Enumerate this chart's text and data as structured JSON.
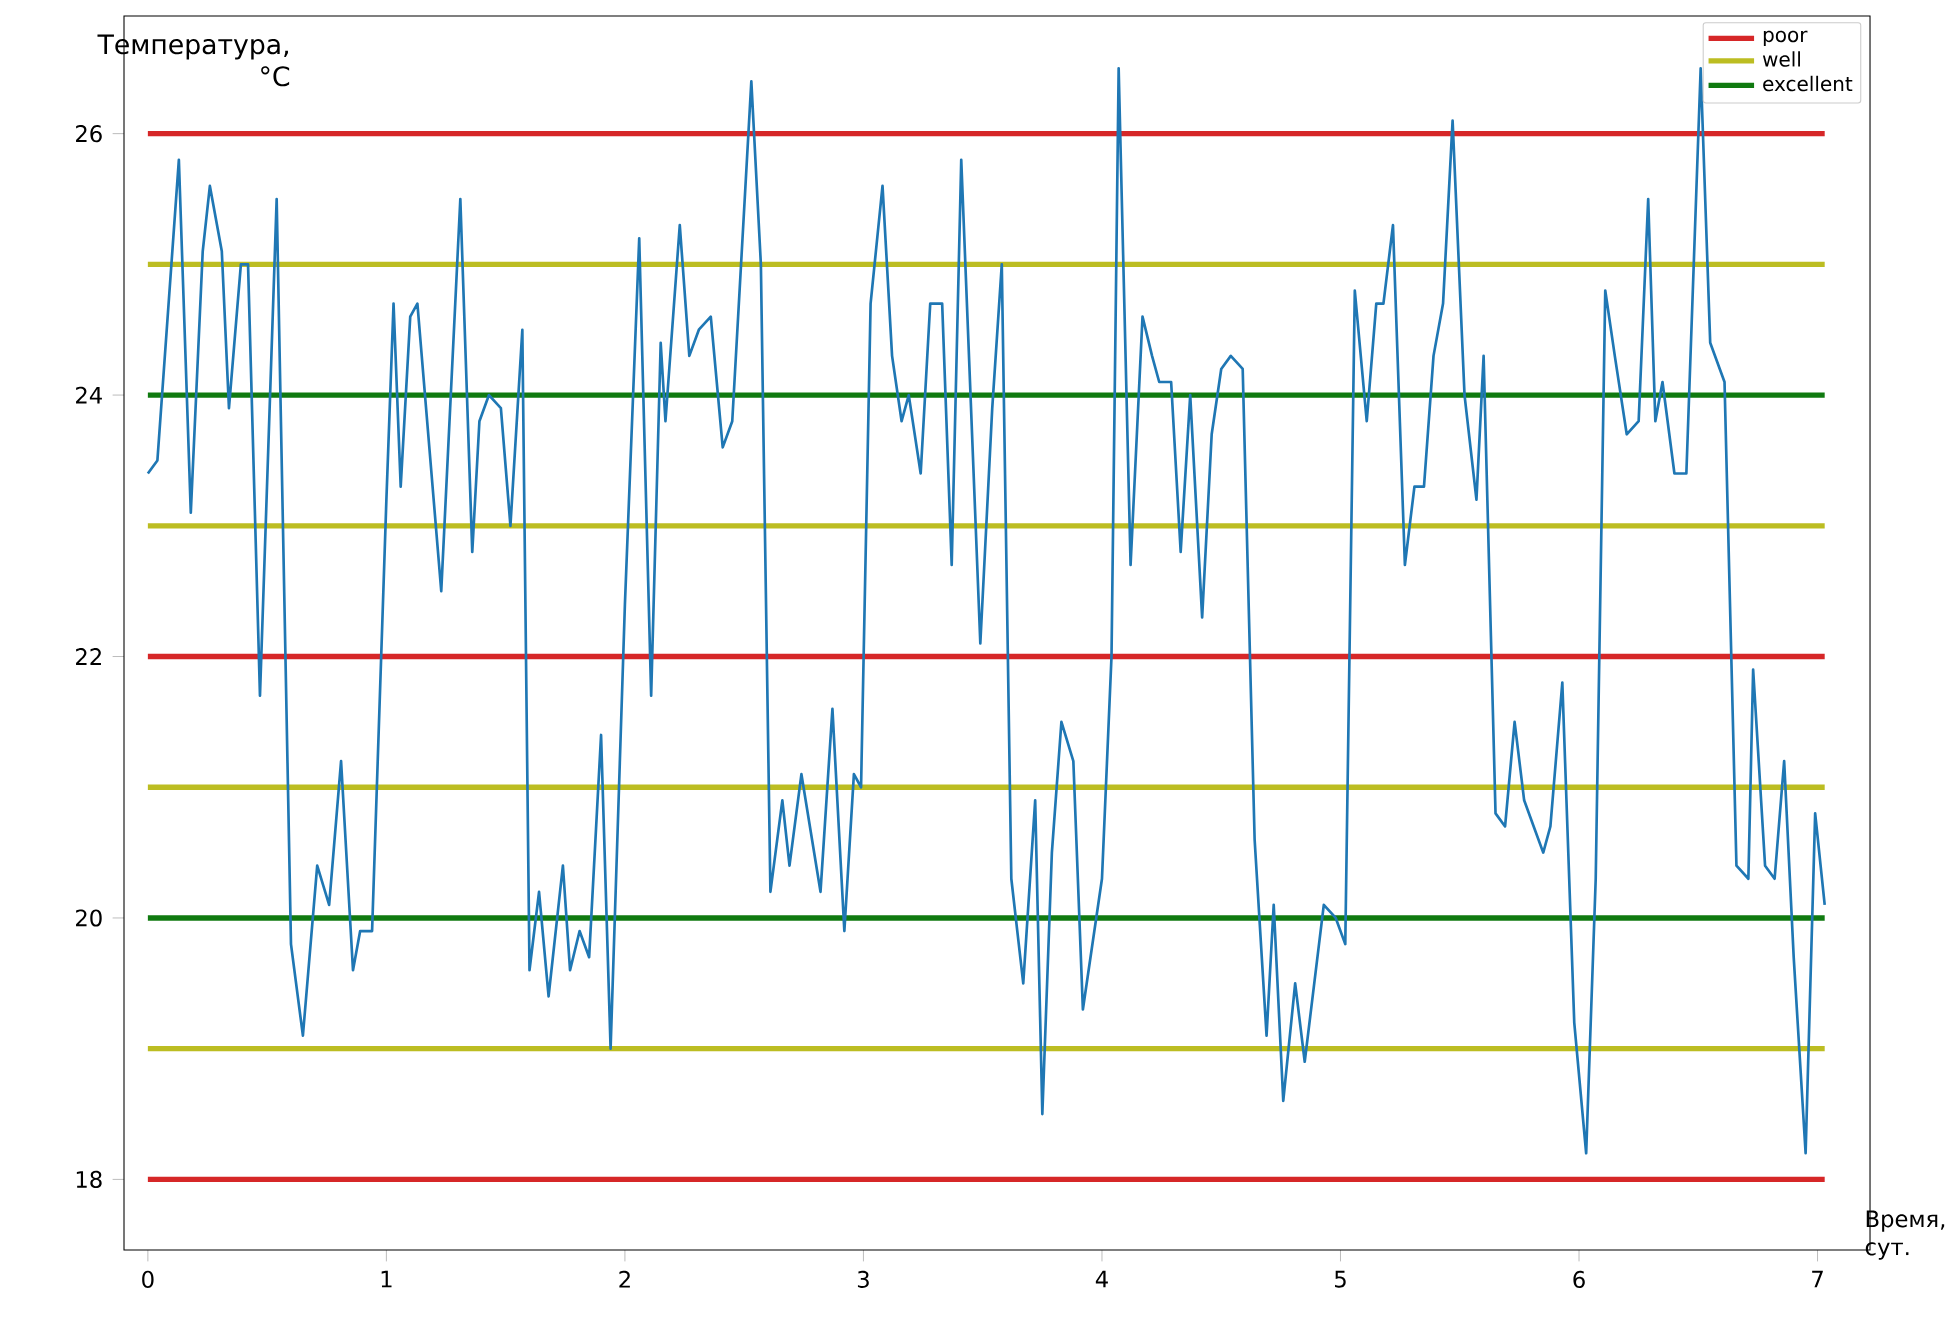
{
  "chart_data": {
    "type": "line",
    "xlabel": "Время, сут.",
    "ylabel": "Температура, °C",
    "xlim": [
      -0.1,
      7.22
    ],
    "ylim": [
      17.46,
      26.9
    ],
    "xticks": [
      0,
      1,
      2,
      3,
      4,
      5,
      6,
      7
    ],
    "yticks": [
      18,
      20,
      22,
      24,
      26
    ],
    "grid": false,
    "legend": "top right",
    "marker": "none",
    "line_style": "solid",
    "series": [
      {
        "color": "#1f77b4",
        "x": [
          0,
          0.04,
          0.13,
          0.18,
          0.23,
          0.26,
          0.31,
          0.34,
          0.39,
          0.42,
          0.47,
          0.54,
          0.6,
          0.65,
          0.71,
          0.76,
          0.81,
          0.86,
          0.89,
          0.94,
          1.0,
          1.03,
          1.06,
          1.1,
          1.13,
          1.23,
          1.31,
          1.36,
          1.39,
          1.43,
          1.48,
          1.52,
          1.57,
          1.6,
          1.64,
          1.68,
          1.74,
          1.77,
          1.81,
          1.85,
          1.9,
          1.94,
          2.0,
          2.06,
          2.11,
          2.15,
          2.17,
          2.23,
          2.27,
          2.31,
          2.36,
          2.41,
          2.45,
          2.53,
          2.57,
          2.61,
          2.66,
          2.69,
          2.74,
          2.82,
          2.87,
          2.92,
          2.96,
          2.99,
          3.03,
          3.08,
          3.12,
          3.16,
          3.19,
          3.24,
          3.28,
          3.33,
          3.37,
          3.41,
          3.49,
          3.54,
          3.58,
          3.62,
          3.67,
          3.72,
          3.75,
          3.79,
          3.83,
          3.88,
          3.92,
          3.96,
          4.0,
          4.04,
          4.07,
          4.12,
          4.17,
          4.21,
          4.24,
          4.29,
          4.33,
          4.37,
          4.42,
          4.46,
          4.5,
          4.54,
          4.59,
          4.64,
          4.69,
          4.72,
          4.76,
          4.81,
          4.85,
          4.93,
          4.98,
          5.02,
          5.06,
          5.11,
          5.15,
          5.18,
          5.22,
          5.27,
          5.31,
          5.35,
          5.39,
          5.43,
          5.47,
          5.52,
          5.57,
          5.6,
          5.65,
          5.69,
          5.73,
          5.77,
          5.81,
          5.85,
          5.88,
          5.93,
          5.98,
          6.03,
          6.07,
          6.11,
          6.15,
          6.2,
          6.25,
          6.29,
          6.32,
          6.35,
          6.4,
          6.45,
          6.51,
          6.55,
          6.61,
          6.66,
          6.71,
          6.73,
          6.78,
          6.82,
          6.86,
          6.9,
          6.95,
          6.99,
          7.03
        ],
        "values": [
          23.4,
          23.5,
          25.8,
          23.1,
          25.1,
          25.6,
          25.1,
          23.9,
          25.0,
          25.0,
          21.7,
          25.5,
          19.8,
          19.1,
          20.4,
          20.1,
          21.2,
          19.6,
          19.9,
          19.9,
          23.2,
          24.7,
          23.3,
          24.6,
          24.7,
          22.5,
          25.5,
          22.8,
          23.8,
          24.0,
          23.9,
          23.0,
          24.5,
          19.6,
          20.2,
          19.4,
          20.4,
          19.6,
          19.9,
          19.7,
          21.4,
          19.0,
          22.4,
          25.2,
          21.7,
          24.4,
          23.8,
          25.3,
          24.3,
          24.5,
          24.6,
          23.6,
          23.8,
          26.4,
          25.0,
          20.2,
          20.9,
          20.4,
          21.1,
          20.2,
          21.6,
          19.9,
          21.1,
          21.0,
          24.7,
          25.6,
          24.3,
          23.8,
          24.0,
          23.4,
          24.7,
          24.7,
          22.7,
          25.8,
          22.1,
          23.9,
          25.0,
          20.3,
          19.5,
          20.9,
          18.5,
          20.5,
          21.5,
          21.2,
          19.3,
          19.8,
          20.3,
          22.0,
          26.5,
          22.7,
          24.6,
          24.3,
          24.1,
          24.1,
          22.8,
          24.0,
          22.3,
          23.7,
          24.2,
          24.3,
          24.2,
          20.6,
          19.1,
          20.1,
          18.6,
          19.5,
          18.9,
          20.1,
          20.0,
          19.8,
          24.8,
          23.8,
          24.7,
          24.7,
          25.3,
          22.7,
          23.3,
          23.3,
          24.3,
          24.7,
          26.1,
          24.0,
          23.2,
          24.3,
          20.8,
          20.7,
          21.5,
          20.9,
          20.7,
          20.5,
          20.7,
          21.8,
          19.2,
          18.2,
          20.3,
          24.8,
          24.3,
          23.7,
          23.8,
          25.5,
          23.8,
          24.1,
          23.4,
          23.4,
          26.5,
          24.4,
          24.1,
          20.4,
          20.3,
          21.9,
          20.4,
          20.3,
          21.2,
          19.7,
          18.2,
          20.8,
          20.1
        ]
      }
    ],
    "ref_lines": [
      {
        "axis": "y",
        "value": 26,
        "label": "poor",
        "color": "#d62728"
      },
      {
        "axis": "y",
        "value": 25,
        "label": "well",
        "color": "#bcbd22"
      },
      {
        "axis": "y",
        "value": 24,
        "label": "excellent",
        "color": "#107a10"
      },
      {
        "axis": "y",
        "value": 23,
        "color": "#bcbd22"
      },
      {
        "axis": "y",
        "value": 22,
        "color": "#d62728"
      },
      {
        "axis": "y",
        "value": 21,
        "color": "#bcbd22"
      },
      {
        "axis": "y",
        "value": 20,
        "color": "#107a10"
      },
      {
        "axis": "y",
        "value": 19,
        "color": "#bcbd22"
      },
      {
        "axis": "y",
        "value": 18,
        "color": "#d62728"
      }
    ]
  }
}
